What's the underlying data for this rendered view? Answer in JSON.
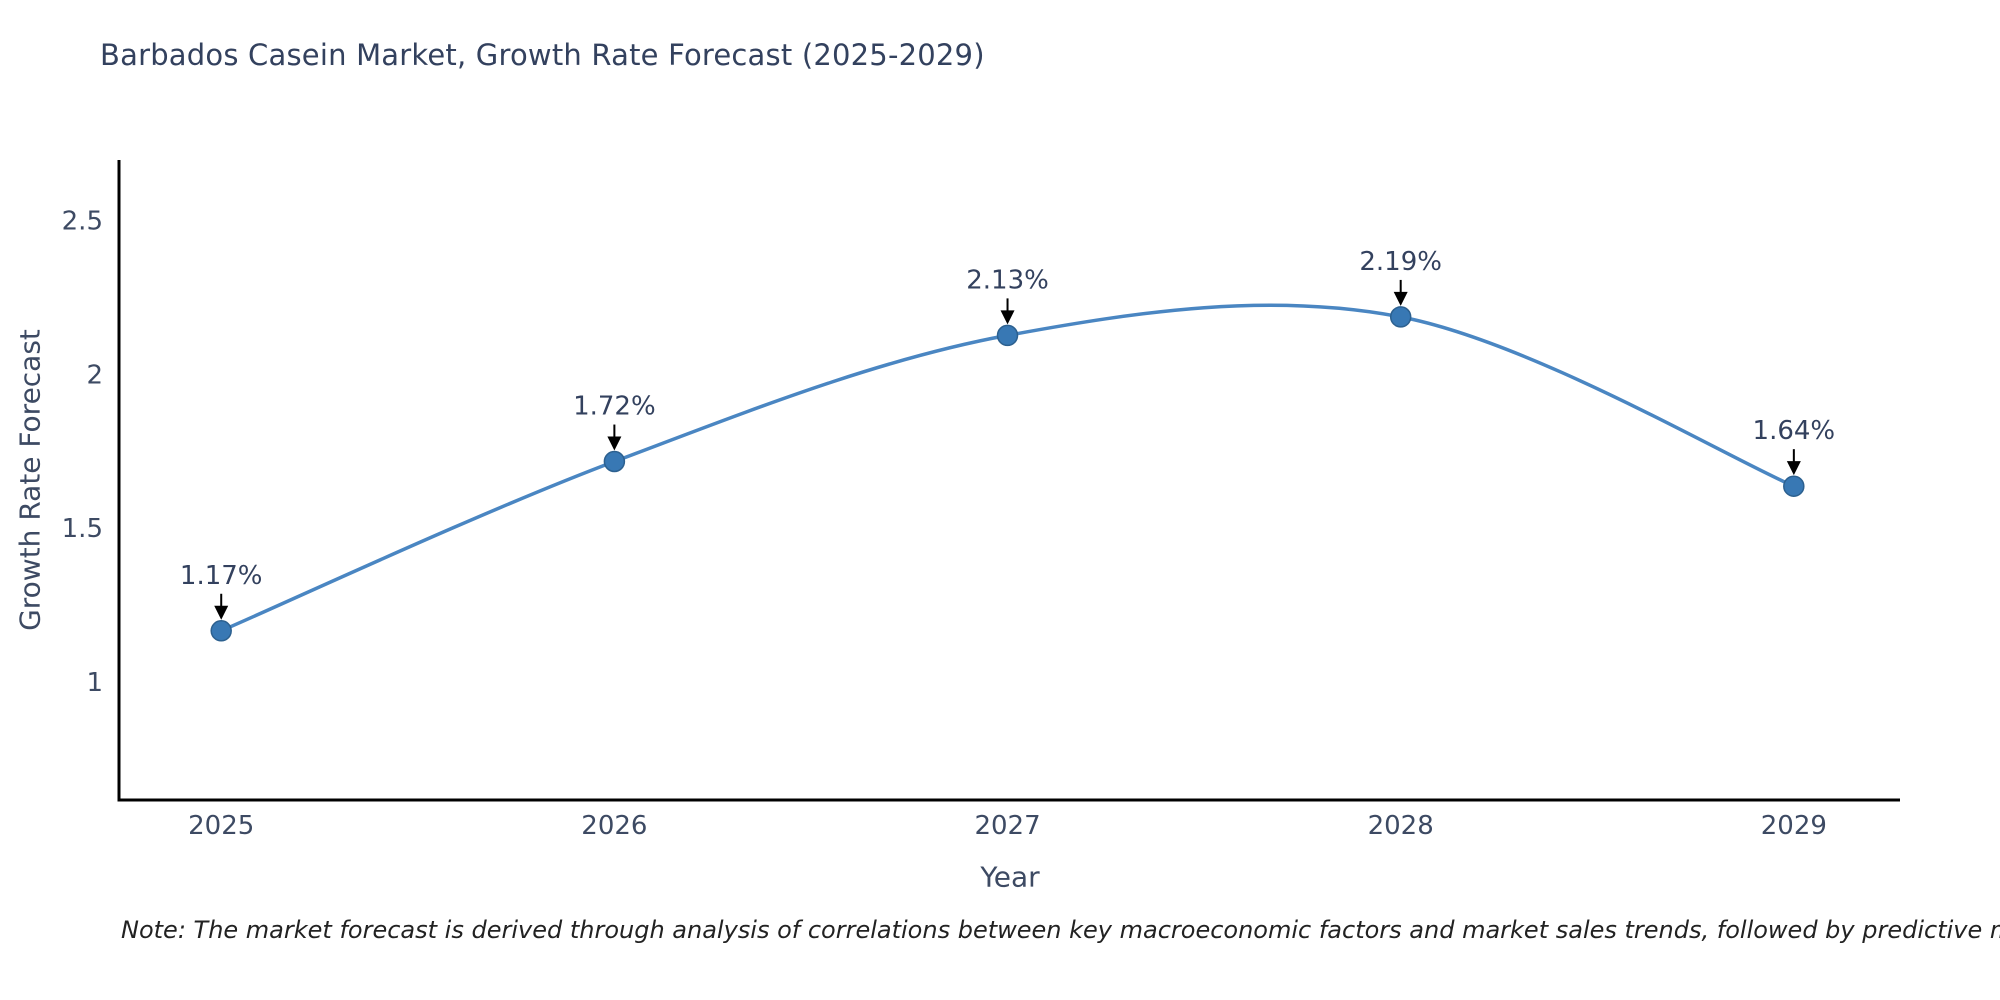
{
  "title": "Barbados Casein Market, Growth Rate Forecast (2025-2029)",
  "note": "Note: The market forecast is derived through analysis of correlations between key macroeconomic factors and market sales trends, followed by predictive modeling to project future sales",
  "chart_data": {
    "type": "line",
    "title": "Barbados Casein Market, Growth Rate Forecast (2025-2029)",
    "xlabel": "Year",
    "ylabel": "Growth Rate Forecast",
    "x": [
      2025,
      2026,
      2027,
      2028,
      2029
    ],
    "values": [
      1.17,
      1.72,
      2.13,
      2.19,
      1.64
    ],
    "point_labels": [
      "1.17%",
      "1.72%",
      "2.13%",
      "2.19%",
      "1.64%"
    ],
    "xticks": [
      "2025",
      "2026",
      "2027",
      "2028",
      "2029"
    ],
    "xtick_values": [
      2025,
      2026,
      2027,
      2028,
      2029
    ],
    "yticks": [
      "1",
      "1.5",
      "2",
      "2.5"
    ],
    "ytick_values": [
      1,
      1.5,
      2,
      2.5
    ],
    "xlim": [
      2024.74,
      2029.27
    ],
    "ylim": [
      0.62,
      2.7
    ],
    "line_shape": "spline",
    "grid": false,
    "legend": "none",
    "colors": {
      "line": "#4a86c2",
      "marker_fill": "#3878b4",
      "marker_edge": "#2c608f",
      "annotation_arrow": "#000000",
      "annotation_text": "#33415e",
      "tick_text": "#3d4a63",
      "axis_line": "#000000"
    }
  }
}
